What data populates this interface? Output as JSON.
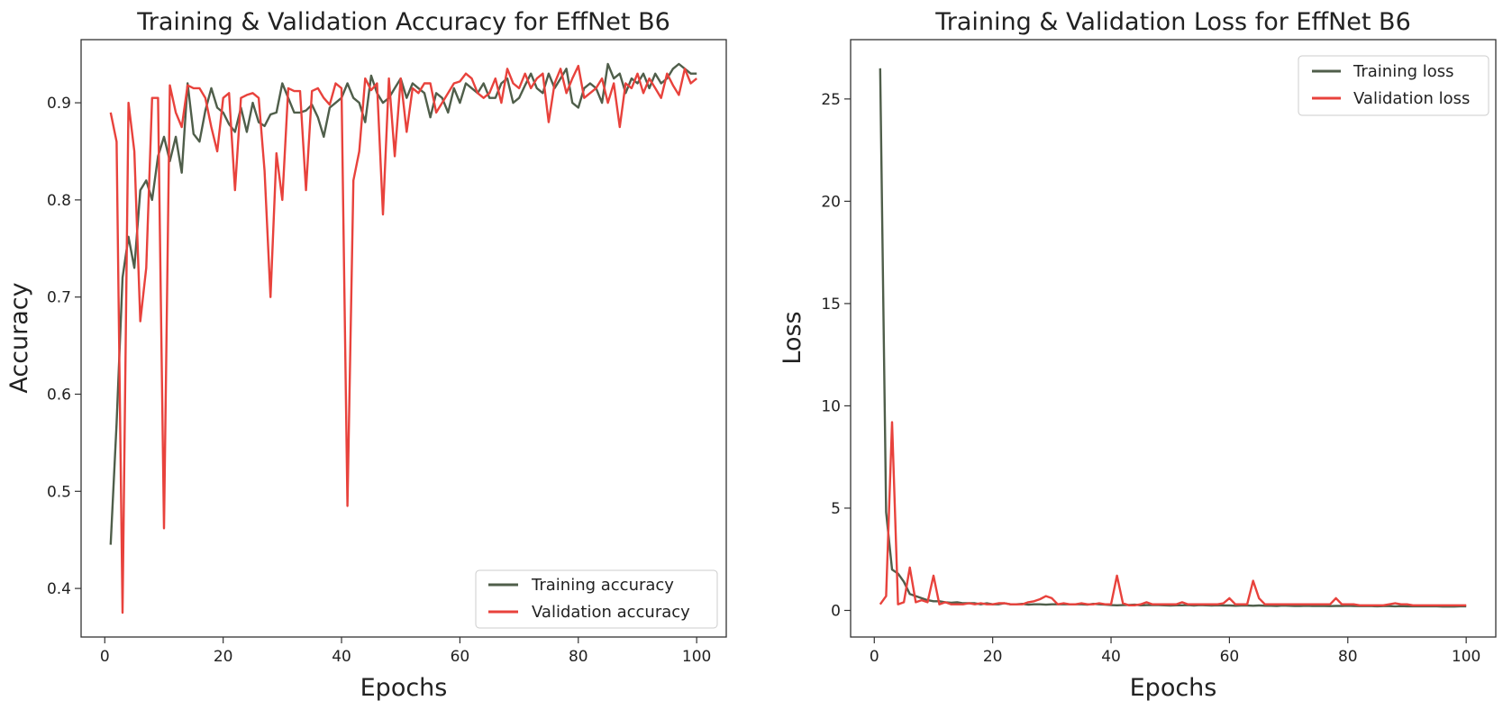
{
  "chart_data": [
    {
      "type": "line",
      "title": "Training & Validation Accuracy for EffNet B6",
      "xlabel": "Epochs",
      "ylabel": "Accuracy",
      "xlim": [
        -4,
        105
      ],
      "ylim": [
        0.35,
        0.965
      ],
      "xticks": [
        0,
        20,
        40,
        60,
        80,
        100
      ],
      "yticks": [
        0.4,
        0.5,
        0.6,
        0.7,
        0.8,
        0.9
      ],
      "grid": false,
      "legend": "lower right",
      "x": [
        1,
        2,
        3,
        4,
        5,
        6,
        7,
        8,
        9,
        10,
        11,
        12,
        13,
        14,
        15,
        16,
        17,
        18,
        19,
        20,
        21,
        22,
        23,
        24,
        25,
        26,
        27,
        28,
        29,
        30,
        31,
        32,
        33,
        34,
        35,
        36,
        37,
        38,
        39,
        40,
        41,
        42,
        43,
        44,
        45,
        46,
        47,
        48,
        49,
        50,
        51,
        52,
        53,
        54,
        55,
        56,
        57,
        58,
        59,
        60,
        61,
        62,
        63,
        64,
        65,
        66,
        67,
        68,
        69,
        70,
        71,
        72,
        73,
        74,
        75,
        76,
        77,
        78,
        79,
        80,
        81,
        82,
        83,
        84,
        85,
        86,
        87,
        88,
        89,
        90,
        91,
        92,
        93,
        94,
        95,
        96,
        97,
        98,
        99,
        100
      ],
      "series": [
        {
          "name": "Training accuracy",
          "color": "#4f5e4a",
          "values": [
            0.445,
            0.57,
            0.72,
            0.762,
            0.73,
            0.81,
            0.82,
            0.8,
            0.845,
            0.865,
            0.84,
            0.865,
            0.828,
            0.92,
            0.868,
            0.86,
            0.892,
            0.915,
            0.895,
            0.89,
            0.878,
            0.87,
            0.895,
            0.87,
            0.9,
            0.88,
            0.876,
            0.888,
            0.89,
            0.92,
            0.905,
            0.89,
            0.89,
            0.892,
            0.898,
            0.885,
            0.865,
            0.895,
            0.9,
            0.905,
            0.92,
            0.905,
            0.9,
            0.88,
            0.928,
            0.91,
            0.9,
            0.905,
            0.915,
            0.925,
            0.905,
            0.92,
            0.915,
            0.91,
            0.885,
            0.91,
            0.905,
            0.89,
            0.915,
            0.9,
            0.92,
            0.915,
            0.91,
            0.92,
            0.905,
            0.905,
            0.92,
            0.925,
            0.9,
            0.905,
            0.918,
            0.93,
            0.915,
            0.91,
            0.93,
            0.915,
            0.925,
            0.935,
            0.9,
            0.895,
            0.915,
            0.92,
            0.915,
            0.9,
            0.94,
            0.925,
            0.93,
            0.91,
            0.925,
            0.92,
            0.93,
            0.915,
            0.93,
            0.92,
            0.925,
            0.935,
            0.94,
            0.935,
            0.93,
            0.93
          ]
        },
        {
          "name": "Validation accuracy",
          "color": "#e8423c",
          "values": [
            0.89,
            0.86,
            0.375,
            0.9,
            0.85,
            0.675,
            0.73,
            0.905,
            0.905,
            0.462,
            0.918,
            0.89,
            0.875,
            0.918,
            0.915,
            0.915,
            0.905,
            0.875,
            0.85,
            0.905,
            0.91,
            0.81,
            0.905,
            0.908,
            0.91,
            0.905,
            0.83,
            0.7,
            0.848,
            0.8,
            0.915,
            0.912,
            0.912,
            0.81,
            0.912,
            0.915,
            0.905,
            0.898,
            0.92,
            0.915,
            0.485,
            0.82,
            0.85,
            0.925,
            0.913,
            0.92,
            0.785,
            0.925,
            0.845,
            0.925,
            0.87,
            0.915,
            0.91,
            0.92,
            0.92,
            0.89,
            0.9,
            0.91,
            0.92,
            0.922,
            0.93,
            0.925,
            0.91,
            0.905,
            0.91,
            0.925,
            0.9,
            0.935,
            0.92,
            0.915,
            0.93,
            0.915,
            0.925,
            0.93,
            0.88,
            0.92,
            0.935,
            0.91,
            0.925,
            0.938,
            0.905,
            0.91,
            0.915,
            0.925,
            0.9,
            0.92,
            0.875,
            0.92,
            0.915,
            0.93,
            0.91,
            0.925,
            0.915,
            0.905,
            0.93,
            0.918,
            0.908,
            0.935,
            0.92,
            0.925
          ]
        }
      ]
    },
    {
      "type": "line",
      "title": "Training & Validation Loss for EffNet B6",
      "xlabel": "Epochs",
      "ylabel": "Loss",
      "xlim": [
        -4,
        105
      ],
      "ylim": [
        -1.3,
        27.9
      ],
      "xticks": [
        0,
        20,
        40,
        60,
        80,
        100
      ],
      "yticks": [
        0,
        5,
        10,
        15,
        20,
        25
      ],
      "grid": false,
      "legend": "upper right",
      "x": [
        1,
        2,
        3,
        4,
        5,
        6,
        7,
        8,
        9,
        10,
        11,
        12,
        13,
        14,
        15,
        16,
        17,
        18,
        19,
        20,
        21,
        22,
        23,
        24,
        25,
        26,
        27,
        28,
        29,
        30,
        31,
        32,
        33,
        34,
        35,
        36,
        37,
        38,
        39,
        40,
        41,
        42,
        43,
        44,
        45,
        46,
        47,
        48,
        49,
        50,
        51,
        52,
        53,
        54,
        55,
        56,
        57,
        58,
        59,
        60,
        61,
        62,
        63,
        64,
        65,
        66,
        67,
        68,
        69,
        70,
        71,
        72,
        73,
        74,
        75,
        76,
        77,
        78,
        79,
        80,
        81,
        82,
        83,
        84,
        85,
        86,
        87,
        88,
        89,
        90,
        91,
        92,
        93,
        94,
        95,
        96,
        97,
        98,
        99,
        100
      ],
      "series": [
        {
          "name": "Training loss",
          "color": "#4f5e4a",
          "values": [
            26.5,
            4.8,
            2.0,
            1.8,
            1.4,
            0.8,
            0.7,
            0.6,
            0.5,
            0.45,
            0.45,
            0.4,
            0.38,
            0.4,
            0.35,
            0.35,
            0.35,
            0.3,
            0.35,
            0.3,
            0.3,
            0.35,
            0.3,
            0.3,
            0.32,
            0.28,
            0.3,
            0.3,
            0.28,
            0.3,
            0.3,
            0.3,
            0.3,
            0.3,
            0.3,
            0.28,
            0.32,
            0.3,
            0.28,
            0.26,
            0.25,
            0.26,
            0.27,
            0.28,
            0.25,
            0.26,
            0.27,
            0.26,
            0.25,
            0.24,
            0.25,
            0.25,
            0.26,
            0.24,
            0.26,
            0.25,
            0.24,
            0.25,
            0.24,
            0.24,
            0.23,
            0.24,
            0.24,
            0.23,
            0.24,
            0.23,
            0.23,
            0.22,
            0.24,
            0.23,
            0.22,
            0.22,
            0.23,
            0.22,
            0.22,
            0.22,
            0.21,
            0.22,
            0.22,
            0.23,
            0.22,
            0.21,
            0.21,
            0.21,
            0.2,
            0.21,
            0.21,
            0.2,
            0.21,
            0.2,
            0.2,
            0.2,
            0.2,
            0.2,
            0.2,
            0.19,
            0.19,
            0.19,
            0.2,
            0.2
          ]
        },
        {
          "name": "Validation loss",
          "color": "#e8423c",
          "values": [
            0.3,
            0.7,
            9.2,
            0.3,
            0.4,
            2.1,
            0.4,
            0.5,
            0.4,
            1.7,
            0.3,
            0.4,
            0.3,
            0.3,
            0.3,
            0.35,
            0.3,
            0.35,
            0.3,
            0.3,
            0.35,
            0.35,
            0.3,
            0.3,
            0.3,
            0.4,
            0.45,
            0.55,
            0.7,
            0.6,
            0.3,
            0.35,
            0.3,
            0.3,
            0.35,
            0.3,
            0.3,
            0.35,
            0.3,
            0.3,
            1.7,
            0.35,
            0.25,
            0.25,
            0.3,
            0.4,
            0.3,
            0.3,
            0.3,
            0.3,
            0.3,
            0.4,
            0.3,
            0.3,
            0.3,
            0.3,
            0.3,
            0.3,
            0.35,
            0.6,
            0.3,
            0.3,
            0.3,
            1.45,
            0.6,
            0.3,
            0.3,
            0.3,
            0.3,
            0.3,
            0.3,
            0.3,
            0.3,
            0.3,
            0.3,
            0.3,
            0.3,
            0.6,
            0.3,
            0.3,
            0.3,
            0.25,
            0.25,
            0.25,
            0.25,
            0.25,
            0.3,
            0.35,
            0.3,
            0.3,
            0.25,
            0.25,
            0.25,
            0.25,
            0.25,
            0.25,
            0.25,
            0.25,
            0.25,
            0.25
          ]
        }
      ]
    }
  ]
}
